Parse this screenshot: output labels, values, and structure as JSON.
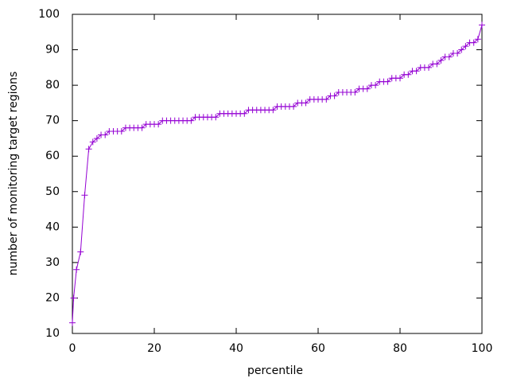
{
  "chart_data": {
    "type": "line",
    "xlabel": "percentile",
    "ylabel": "number of monitoring target regions",
    "color": "#9400d3",
    "marker": "+",
    "x": [
      0,
      0.3,
      1,
      2,
      3,
      4,
      5,
      6,
      7,
      8,
      9,
      10,
      11,
      12,
      13,
      14,
      15,
      16,
      17,
      18,
      19,
      20,
      21,
      22,
      23,
      24,
      25,
      26,
      27,
      28,
      29,
      30,
      31,
      32,
      33,
      34,
      35,
      36,
      37,
      38,
      39,
      40,
      41,
      42,
      43,
      44,
      45,
      46,
      47,
      48,
      49,
      50,
      51,
      52,
      53,
      54,
      55,
      56,
      57,
      58,
      59,
      60,
      61,
      62,
      63,
      64,
      65,
      66,
      67,
      68,
      69,
      70,
      71,
      72,
      73,
      74,
      75,
      76,
      77,
      78,
      79,
      80,
      81,
      82,
      83,
      84,
      85,
      86,
      87,
      88,
      89,
      90,
      91,
      92,
      93,
      94,
      95,
      96,
      97,
      98,
      99,
      100
    ],
    "values": [
      13,
      20,
      28,
      33,
      49,
      62,
      64,
      65,
      66,
      66,
      67,
      67,
      67,
      67,
      68,
      68,
      68,
      68,
      68,
      69,
      69,
      69,
      69,
      70,
      70,
      70,
      70,
      70,
      70,
      70,
      70,
      71,
      71,
      71,
      71,
      71,
      71,
      72,
      72,
      72,
      72,
      72,
      72,
      72,
      73,
      73,
      73,
      73,
      73,
      73,
      73,
      74,
      74,
      74,
      74,
      74,
      75,
      75,
      75,
      76,
      76,
      76,
      76,
      76,
      77,
      77,
      78,
      78,
      78,
      78,
      78,
      79,
      79,
      79,
      80,
      80,
      81,
      81,
      81,
      82,
      82,
      82,
      83,
      83,
      84,
      84,
      85,
      85,
      85,
      86,
      86,
      87,
      88,
      88,
      89,
      89,
      90,
      91,
      92,
      92,
      93,
      97
    ],
    "xlim": [
      0,
      100
    ],
    "xticks": [
      0,
      20,
      40,
      60,
      80,
      100
    ],
    "ylim": [
      10,
      100
    ],
    "yticks": [
      10,
      20,
      30,
      40,
      50,
      60,
      70,
      80,
      90,
      100
    ],
    "grid": false
  }
}
